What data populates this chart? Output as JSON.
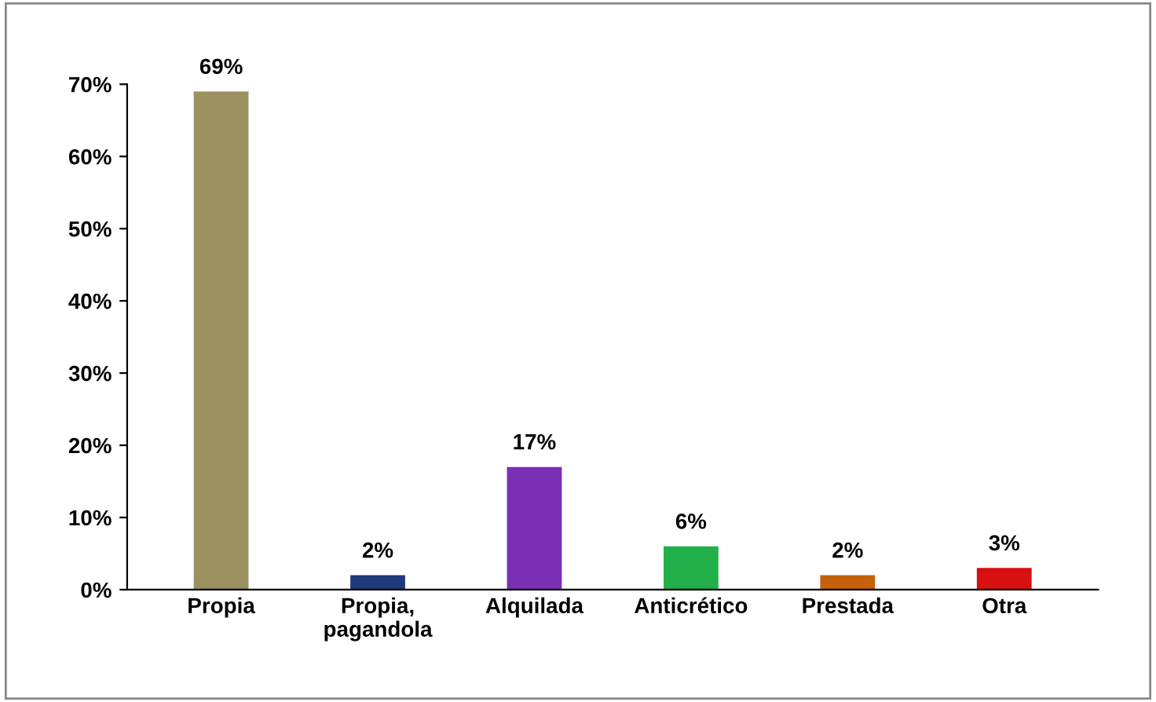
{
  "chart_data": {
    "type": "bar",
    "categories": [
      "Propia",
      "Propia,\npagandola",
      "Alquilada",
      "Anticrético",
      "Prestada",
      "Otra"
    ],
    "values": [
      69,
      2,
      17,
      6,
      2,
      3
    ],
    "colors": [
      "#9c9160",
      "#1f3a7a",
      "#7b2fb5",
      "#22b04a",
      "#c5600a",
      "#d81010"
    ],
    "value_labels": [
      "69%",
      "2%",
      "17%",
      "6%",
      "2%",
      "3%"
    ],
    "ylim": [
      0,
      70
    ],
    "yticks": [
      {
        "value": 0,
        "label": "0%"
      },
      {
        "value": 10,
        "label": "10%"
      },
      {
        "value": 20,
        "label": "20%"
      },
      {
        "value": 30,
        "label": "30%"
      },
      {
        "value": 40,
        "label": "40%"
      },
      {
        "value": 50,
        "label": "50%"
      },
      {
        "value": 60,
        "label": "60%"
      },
      {
        "value": 70,
        "label": "70%"
      }
    ],
    "grid": false
  }
}
